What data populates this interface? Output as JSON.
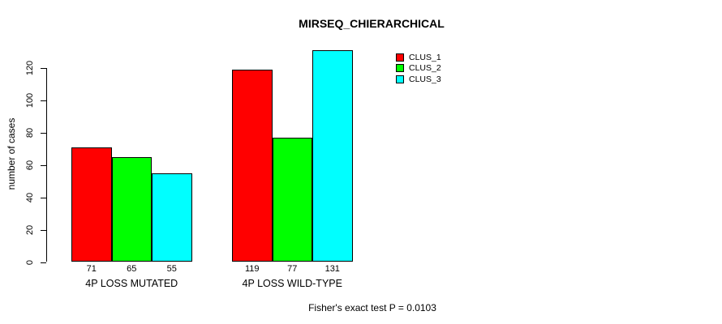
{
  "chart_data": {
    "type": "bar",
    "title": "MIRSEQ_CHIERARCHICAL",
    "ylabel": "number of cases",
    "xlabel": "",
    "categories": [
      "4P LOSS MUTATED",
      "4P LOSS WILD-TYPE"
    ],
    "series": [
      {
        "name": "CLUS_1",
        "color": "#ff0000",
        "values": [
          71,
          119
        ]
      },
      {
        "name": "CLUS_2",
        "color": "#00ff00",
        "values": [
          65,
          77
        ]
      },
      {
        "name": "CLUS_3",
        "color": "#00ffff",
        "values": [
          55,
          131
        ]
      }
    ],
    "bar_value_labels": [
      [
        71,
        65,
        55
      ],
      [
        119,
        77,
        131
      ]
    ],
    "yticks": [
      0,
      20,
      40,
      60,
      80,
      100,
      120
    ],
    "ylim": [
      0,
      131
    ],
    "grid": false,
    "legend_position": "top-right",
    "bar_border_color": "#000000",
    "background": "#ffffff",
    "annotation": "Fisher's exact test P = 0.0103"
  }
}
